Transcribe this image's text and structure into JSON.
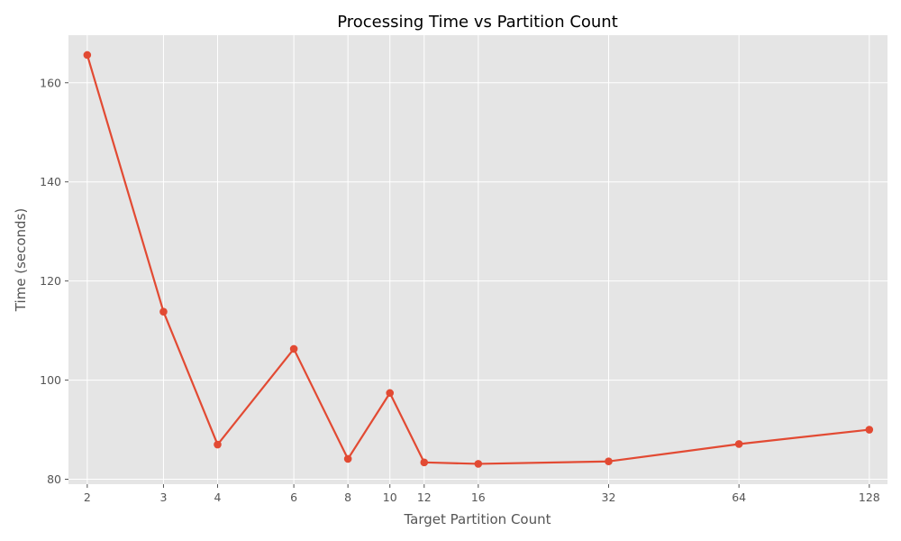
{
  "chart_data": {
    "type": "line",
    "title": "Processing Time vs Partition Count",
    "xlabel": "Target Partition Count",
    "ylabel": "Time (seconds)",
    "x_scale": "log2",
    "x": [
      2,
      3,
      4,
      6,
      8,
      10,
      12,
      16,
      32,
      64,
      128
    ],
    "x_tick_labels": [
      "2",
      "3",
      "4",
      "6",
      "8",
      "10",
      "12",
      "16",
      "32",
      "64",
      "128"
    ],
    "y_ticks": [
      80,
      100,
      120,
      140,
      160
    ],
    "y_tick_labels": [
      "80",
      "100",
      "120",
      "140",
      "160"
    ],
    "xlim": [
      1.81,
      141
    ],
    "ylim": [
      79,
      169.6
    ],
    "grid": true,
    "series": [
      {
        "values": [
          165.6,
          113.8,
          87.0,
          106.3,
          84.1,
          97.4,
          83.4,
          83.1,
          83.6,
          87.1,
          90.0
        ],
        "color": "#E24A33"
      }
    ],
    "background": "#E5E5E5",
    "grid_color": "#FFFFFF",
    "text_color": "#555555"
  }
}
